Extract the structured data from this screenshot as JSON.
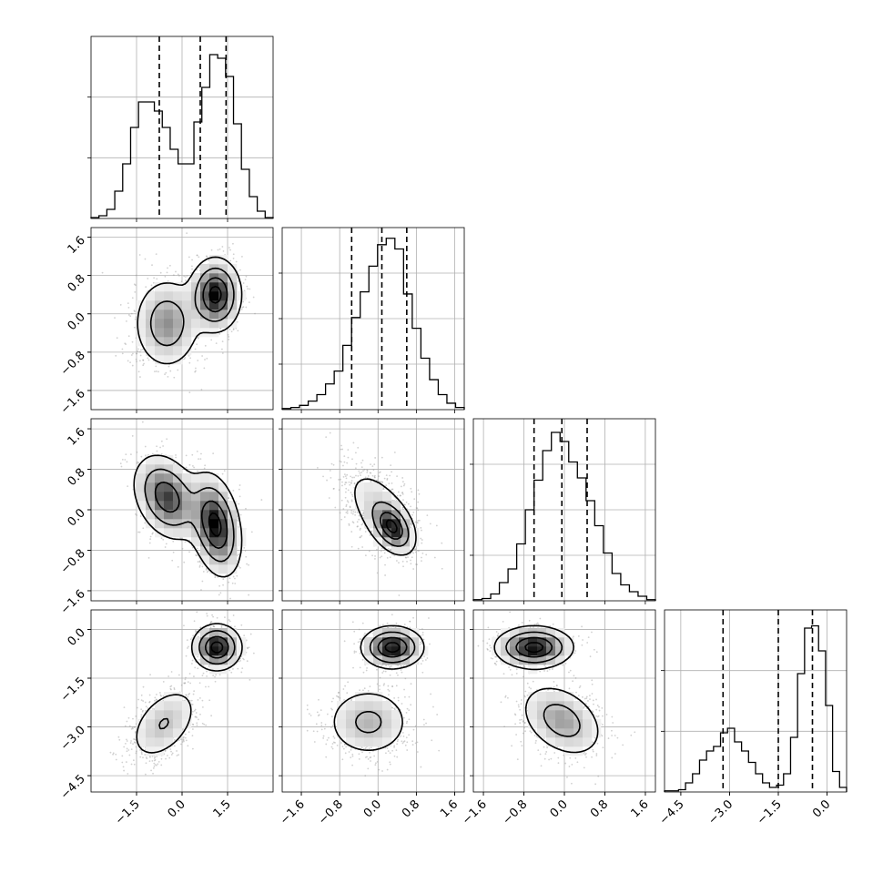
{
  "chart_data": {
    "type": "corner",
    "grid": true,
    "xlim": [
      [
        -3.0,
        3.0
      ],
      [
        -2.0,
        1.8
      ],
      [
        -1.8,
        1.8
      ],
      [
        -5.0,
        0.6
      ]
    ],
    "xticks": [
      [
        "−1.5",
        "0.0",
        "1.5"
      ],
      [
        "−1.6",
        "−0.8",
        "0.0",
        "0.8",
        "1.6"
      ],
      [
        "−1.6",
        "−0.8",
        "0.0",
        "0.8",
        "1.6"
      ],
      [
        "−4.5",
        "−3.0",
        "−1.5",
        "0.0"
      ]
    ],
    "yticks": [
      [],
      [
        "1.6",
        "0.8",
        "0.0",
        "−0.8",
        "−1.6"
      ],
      [
        "1.6",
        "0.8",
        "0.0",
        "−0.8",
        "−1.6"
      ],
      [
        "0.0",
        "−1.5",
        "−3.0",
        "−4.5"
      ]
    ],
    "histograms": [
      {
        "param": 1,
        "quantiles": [
          -0.75,
          0.6,
          1.45
        ],
        "counts": [
          0.5,
          1.5,
          5,
          15,
          30,
          50,
          64,
          64,
          59,
          50,
          38,
          30,
          30,
          53,
          72,
          90,
          88,
          78,
          52,
          27,
          12,
          4,
          0.5
        ],
        "ylim": [
          0,
          100
        ],
        "yticks": 2
      },
      {
        "param": 2,
        "quantiles": [
          -0.55,
          0.08,
          0.6
        ],
        "counts": [
          0.5,
          1,
          2,
          4,
          7,
          12,
          18,
          30,
          43,
          55,
          67,
          77,
          80,
          75,
          54,
          38,
          24,
          14,
          7,
          3,
          1
        ],
        "ylim": [
          0,
          85
        ],
        "yticks": 3
      },
      {
        "param": 3,
        "quantiles": [
          -0.6,
          -0.05,
          0.45
        ],
        "counts": [
          0.5,
          1,
          3,
          8,
          14,
          25,
          40,
          53,
          66,
          74,
          70,
          61,
          54,
          44,
          33,
          21,
          12,
          7,
          4,
          2,
          0.5
        ],
        "ylim": [
          0,
          80
        ],
        "yticks": 3
      },
      {
        "param": 4,
        "quantiles": [
          -3.2,
          -1.5,
          -0.45
        ],
        "counts": [
          0.5,
          0.5,
          1,
          4,
          8,
          14,
          18,
          20,
          26,
          28,
          22,
          18,
          13,
          8,
          4,
          2,
          3,
          8,
          24,
          52,
          72,
          73,
          62,
          38,
          9,
          2
        ],
        "ylim": [
          0,
          80
        ],
        "yticks": 2
      }
    ],
    "contour_panels": [
      {
        "row": 2,
        "col": 1,
        "modes": [
          {
            "cx": -0.5,
            "cy": -0.2,
            "sx": 0.55,
            "sy": 0.48,
            "rho": 0.0,
            "w": 0.48
          },
          {
            "cx": 1.1,
            "cy": 0.4,
            "sx": 0.42,
            "sy": 0.38,
            "rho": 0.0,
            "w": 0.52
          }
        ],
        "ylim": [
          -2.0,
          1.8
        ]
      },
      {
        "row": 3,
        "col": 1,
        "modes": [
          {
            "cx": -0.5,
            "cy": 0.25,
            "sx": 0.55,
            "sy": 0.42,
            "rho": -0.3,
            "w": 0.48
          },
          {
            "cx": 1.1,
            "cy": -0.3,
            "sx": 0.42,
            "sy": 0.5,
            "rho": -0.3,
            "w": 0.52
          }
        ],
        "ylim": [
          -1.8,
          1.8
        ]
      },
      {
        "row": 3,
        "col": 2,
        "modes": [
          {
            "cx": 0.05,
            "cy": 0.0,
            "sx": 0.42,
            "sy": 0.48,
            "rho": -0.55,
            "w": 0.55
          },
          {
            "cx": 0.3,
            "cy": -0.35,
            "sx": 0.22,
            "sy": 0.25,
            "rho": -0.4,
            "w": 0.45
          }
        ],
        "ylim": [
          -1.8,
          1.8
        ]
      },
      {
        "row": 4,
        "col": 1,
        "modes": [
          {
            "cx": -0.6,
            "cy": -2.9,
            "sx": 0.6,
            "sy": 0.6,
            "rho": 0.45,
            "w": 0.48
          },
          {
            "cx": 1.15,
            "cy": -0.55,
            "sx": 0.4,
            "sy": 0.35,
            "rho": 0.0,
            "w": 0.52
          }
        ],
        "ylim": [
          -5.0,
          0.6
        ]
      },
      {
        "row": 4,
        "col": 2,
        "modes": [
          {
            "cx": -0.2,
            "cy": -2.85,
            "sx": 0.45,
            "sy": 0.55,
            "rho": 0.0,
            "w": 0.5
          },
          {
            "cx": 0.3,
            "cy": -0.55,
            "sx": 0.32,
            "sy": 0.32,
            "rho": 0.0,
            "w": 0.5
          }
        ],
        "ylim": [
          -5.0,
          0.6
        ]
      },
      {
        "row": 4,
        "col": 3,
        "modes": [
          {
            "cx": -0.6,
            "cy": -0.55,
            "sx": 0.38,
            "sy": 0.32,
            "rho": 0.0,
            "w": 0.5
          },
          {
            "cx": -0.05,
            "cy": -2.8,
            "sx": 0.42,
            "sy": 0.58,
            "rho": -0.35,
            "w": 0.5
          }
        ],
        "ylim": [
          -5.0,
          0.6
        ]
      }
    ]
  }
}
